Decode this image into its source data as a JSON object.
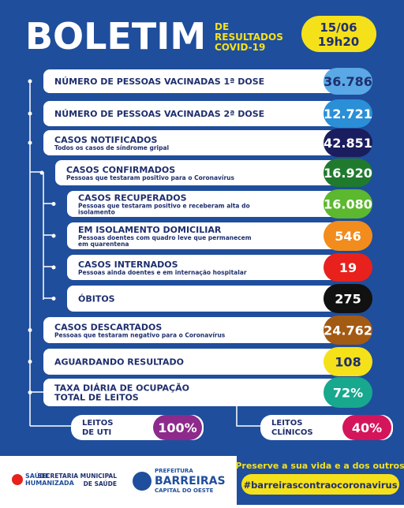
{
  "header": {
    "title": "BOLETIM",
    "subtitle": [
      "DE",
      "RESULTADOS",
      "COVID-19"
    ],
    "date": "15/06",
    "time": "19h20"
  },
  "rows": [
    {
      "label": [
        "NÚMERO DE PESSOAS VACINADAS 1ª DOSE"
      ],
      "sublabel": [],
      "value": "36.786"
    },
    {
      "label": [
        "NÚMERO DE PESSOAS VACINADAS 2ª DOSE"
      ],
      "sublabel": [],
      "value": "12.721"
    },
    {
      "label": [
        "CASOS NOTIFICADOS"
      ],
      "sublabel": [
        "Todos os casos de síndrome gripal"
      ],
      "value": "42.851"
    },
    {
      "label": [
        "CASOS CONFIRMADOS"
      ],
      "sublabel": [
        "Pessoas que testaram positivo para o Coronavírus"
      ],
      "value": "16.920"
    },
    {
      "label": [
        "CASOS RECUPERADOS"
      ],
      "sublabel": [
        "Pessoas que testaram positivo e receberam alta do",
        "isolamento"
      ],
      "value": "16.080"
    },
    {
      "label": [
        "EM ISOLAMENTO DOMICILIAR"
      ],
      "sublabel": [
        "Pessoas doentes com quadro leve que permanecem",
        "em quarentena"
      ],
      "value": "546"
    },
    {
      "label": [
        "CASOS INTERNADOS"
      ],
      "sublabel": [
        "Pessoas ainda doentes e em internação hospitalar"
      ],
      "value": "19"
    },
    {
      "label": [
        "ÓBITOS"
      ],
      "sublabel": [],
      "value": "275"
    },
    {
      "label": [
        "CASOS DESCARTADOS"
      ],
      "sublabel": [
        "Pessoas que testaram negativo para o Coronavírus"
      ],
      "value": "24.762"
    },
    {
      "label": [
        "AGUARDANDO RESULTADO"
      ],
      "sublabel": [],
      "value": "108"
    },
    {
      "label": [
        "TAXA DIÁRIA DE OCUPAÇÃO",
        "TOTAL DE LEITOS"
      ],
      "sublabel": [],
      "value": "72%"
    }
  ],
  "beds": [
    {
      "label": [
        "LEITOS",
        "DE UTI"
      ],
      "value": "100%"
    },
    {
      "label": [
        "LEITOS",
        "CLÍNICOS"
      ],
      "value": "40%"
    }
  ],
  "footer": {
    "slogan": "Preserve a sua vida e a dos outros!",
    "hashtag": "#barreirascontraocoronavirus",
    "logo1": [
      "SAÚDE",
      "HUMANIZADA"
    ],
    "logo2": [
      "SECRETARIA MUNICIPAL",
      "DE SAÚDE"
    ],
    "logo3": [
      "PREFEITURA",
      "BARREIRAS",
      "CAPITAL DO OESTE"
    ]
  }
}
